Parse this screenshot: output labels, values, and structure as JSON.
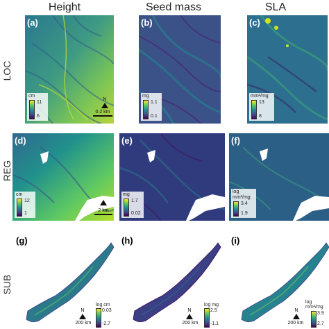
{
  "columns": [
    "Height",
    "Seed mass",
    "SLA"
  ],
  "rows": [
    "LOC",
    "REG",
    "SUB"
  ],
  "panels": {
    "a": {
      "label": "(a)",
      "unit": "cm",
      "max": "11",
      "min": "6",
      "scale": "0.2 km"
    },
    "b": {
      "label": "(b)",
      "unit": "mg",
      "max": "1.1",
      "min": "0.1",
      "scale": "0.2 km"
    },
    "c": {
      "label": "(c)",
      "unit": "mm²/mg",
      "max": "13",
      "min": "8",
      "scale": "0.2 km"
    },
    "d": {
      "label": "(d)",
      "unit": "cm",
      "max": "12",
      "min": "1",
      "scale": "2 km"
    },
    "e": {
      "label": "(e)",
      "unit": "mg",
      "max": "1.7",
      "min": "0.02",
      "scale": "2 km"
    },
    "f": {
      "label": "(f)",
      "unit": "log mm²/mg",
      "max": "3.4",
      "min": "1.9",
      "scale": "2 km"
    },
    "g": {
      "label": "(g)",
      "unit": "log cm",
      "max": "0.03",
      "min": "-2.7",
      "scale": "200 km"
    },
    "h": {
      "label": "(h)",
      "unit": "log mg",
      "max": "2.5",
      "min": "-1.1",
      "scale": "200 km"
    },
    "i": {
      "label": "(i)",
      "unit": "log mm²/mg",
      "max": "3.9",
      "min": "2.7",
      "scale": "200 km"
    }
  },
  "north_label": "N",
  "colors": {
    "viridis_dark": "#440154",
    "viridis_blue": "#3b528b",
    "viridis_teal": "#21918c",
    "viridis_green": "#5ec962",
    "viridis_yellow": "#fde725"
  }
}
